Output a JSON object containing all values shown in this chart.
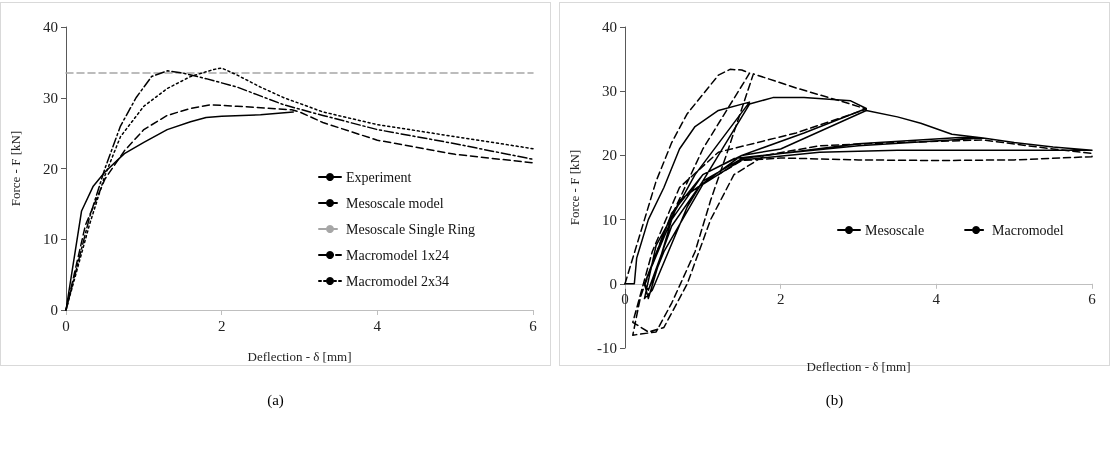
{
  "chart_data": [
    {
      "type": "line",
      "xlabel": "Deflection - δ [mm]",
      "ylabel": "Force - F [kN]",
      "xlim": [
        0,
        6
      ],
      "ylim": [
        0,
        40
      ],
      "xticks": [
        0,
        2,
        4,
        6
      ],
      "yticks": [
        0,
        10,
        20,
        30,
        40
      ],
      "grid": false,
      "legend": "bottom right",
      "marker": "none",
      "annotations": [
        "(a)"
      ],
      "series": [
        {
          "name": "Experiment",
          "color": "#000000",
          "line_style": "solid",
          "x": [
            0,
            0.1,
            0.2,
            0.35,
            0.5,
            0.75,
            1.0,
            1.3,
            1.6,
            1.8,
            2.0,
            2.5,
            2.92
          ],
          "values": [
            0,
            7,
            14,
            17.5,
            19.5,
            22.1,
            23.7,
            25.5,
            26.6,
            27.2,
            27.4,
            27.6,
            28.0
          ]
        },
        {
          "name": "Mesoscale model",
          "color": "#000000",
          "line_style": "dashed",
          "x": [
            0,
            0.25,
            0.5,
            0.75,
            1.0,
            1.3,
            1.6,
            1.85,
            2.2,
            2.9,
            3.0,
            3.3,
            4.0,
            5.0,
            6.0
          ],
          "values": [
            0,
            12,
            18.5,
            22.5,
            25.5,
            27.5,
            28.5,
            29,
            28.8,
            28.3,
            28,
            26.5,
            24,
            22,
            20.8
          ]
        },
        {
          "name": "Mesoscale Single Ring",
          "color": "#a6a6a6",
          "line_style": "dashed",
          "x": [
            0,
            6
          ],
          "values": [
            33.5,
            33.5
          ]
        },
        {
          "name": "Macromodel 1x24",
          "color": "#000000",
          "line_style": "dashdot",
          "x": [
            0,
            0.3,
            0.5,
            0.7,
            0.9,
            1.1,
            1.3,
            1.5,
            1.8,
            2.2,
            2.8,
            3.3,
            4.0,
            5.0,
            6.0
          ],
          "values": [
            0,
            13,
            20,
            26,
            30,
            33,
            33.8,
            33.5,
            32.7,
            31.5,
            29,
            27.5,
            25.5,
            23.5,
            21.3
          ]
        },
        {
          "name": "Macromodel 2x34",
          "color": "#000000",
          "line_style": "dotted",
          "x": [
            0,
            0.3,
            0.5,
            0.7,
            1.0,
            1.3,
            1.6,
            1.9,
            2.0,
            2.2,
            2.5,
            2.8,
            3.3,
            4.0,
            5.0,
            6.0
          ],
          "values": [
            0,
            12,
            19,
            24.5,
            28.8,
            31.3,
            33,
            34,
            34.2,
            33.2,
            31.5,
            30,
            28,
            26.2,
            24.5,
            22.8
          ]
        }
      ]
    },
    {
      "type": "line",
      "xlabel": "Deflection - δ [mm]",
      "ylabel": "Force - F [kN]",
      "xlim": [
        0,
        6
      ],
      "ylim": [
        -10,
        40
      ],
      "xticks": [
        0,
        2,
        4,
        6
      ],
      "yticks": [
        -10,
        0,
        10,
        20,
        30,
        40
      ],
      "grid": false,
      "legend": "right",
      "marker": "none",
      "annotations": [
        "(b)"
      ],
      "series": [
        {
          "name": "Mesoscale",
          "color": "#000000",
          "line_style": "solid",
          "x": [
            0,
            0.12,
            0.15,
            0.3,
            0.5,
            0.7,
            0.9,
            1.2,
            1.6,
            0.9,
            0.4,
            0.25,
            0.35,
            0.8,
            1.2,
            1.6,
            1.9,
            2.3,
            2.9,
            3.1,
            2.3,
            1.5,
            0.7,
            0.25,
            0.3,
            0.6,
            1.0,
            1.5,
            2.0,
            3.1,
            3.5,
            3.8,
            4.2,
            4.6,
            3.0,
            2.0,
            1.4,
            1.0,
            0.6,
            0.25,
            0.3,
            0.6,
            1.0,
            1.5,
            2.0,
            3.0,
            4.3,
            4.6,
            5.0,
            5.5,
            6.0,
            4.5,
            3.5,
            2.5,
            1.5,
            1.0,
            0.5,
            0.3
          ],
          "values": [
            0,
            0,
            4,
            10,
            15,
            21,
            24.5,
            27,
            28.3,
            17,
            6,
            -2.3,
            -1,
            12,
            20,
            28,
            29,
            29,
            28.5,
            27.3,
            23.5,
            20,
            13,
            0,
            -2.3,
            10,
            17,
            20,
            21,
            27,
            26,
            25,
            23.3,
            22.7,
            21.5,
            20.3,
            19.5,
            17,
            11,
            0,
            -1,
            9,
            16,
            19.5,
            20.3,
            21.8,
            22.8,
            22.7,
            22,
            21.3,
            20.8,
            20.8,
            20.8,
            20.5,
            19.3,
            15.5,
            5,
            -1
          ]
        },
        {
          "name": "Macromodel",
          "color": "#000000",
          "line_style": "dashed",
          "x": [
            0,
            0.2,
            0.4,
            0.6,
            0.8,
            1.0,
            1.2,
            1.35,
            1.5,
            1.6,
            1.0,
            0.5,
            0.2,
            0.1,
            0.4,
            0.6,
            0.9,
            1.1,
            1.3,
            1.65,
            2.2,
            2.9,
            3.1,
            2.2,
            1.2,
            0.7,
            0.35,
            0.1,
            0.3,
            0.5,
            0.8,
            1.1,
            1.4,
            1.8,
            2.5,
            3.5,
            4.6,
            5.5,
            6.0,
            6.0,
            5.0,
            4.0,
            3.0,
            2.0,
            1.5,
            1.2
          ],
          "values": [
            0,
            8,
            16,
            22,
            26.5,
            29.5,
            32.5,
            33.4,
            33.3,
            32.8,
            21,
            8,
            -2,
            -8,
            -7.5,
            -3,
            5,
            13,
            20,
            32.7,
            30.5,
            28,
            27.2,
            23.5,
            20.5,
            15,
            5,
            -6,
            -7.5,
            -6.8,
            0,
            10,
            17,
            20,
            21.5,
            22,
            22.4,
            21,
            20.3,
            19.8,
            19.3,
            19.2,
            19.3,
            19.6,
            19.2,
            17
          ]
        }
      ]
    }
  ]
}
